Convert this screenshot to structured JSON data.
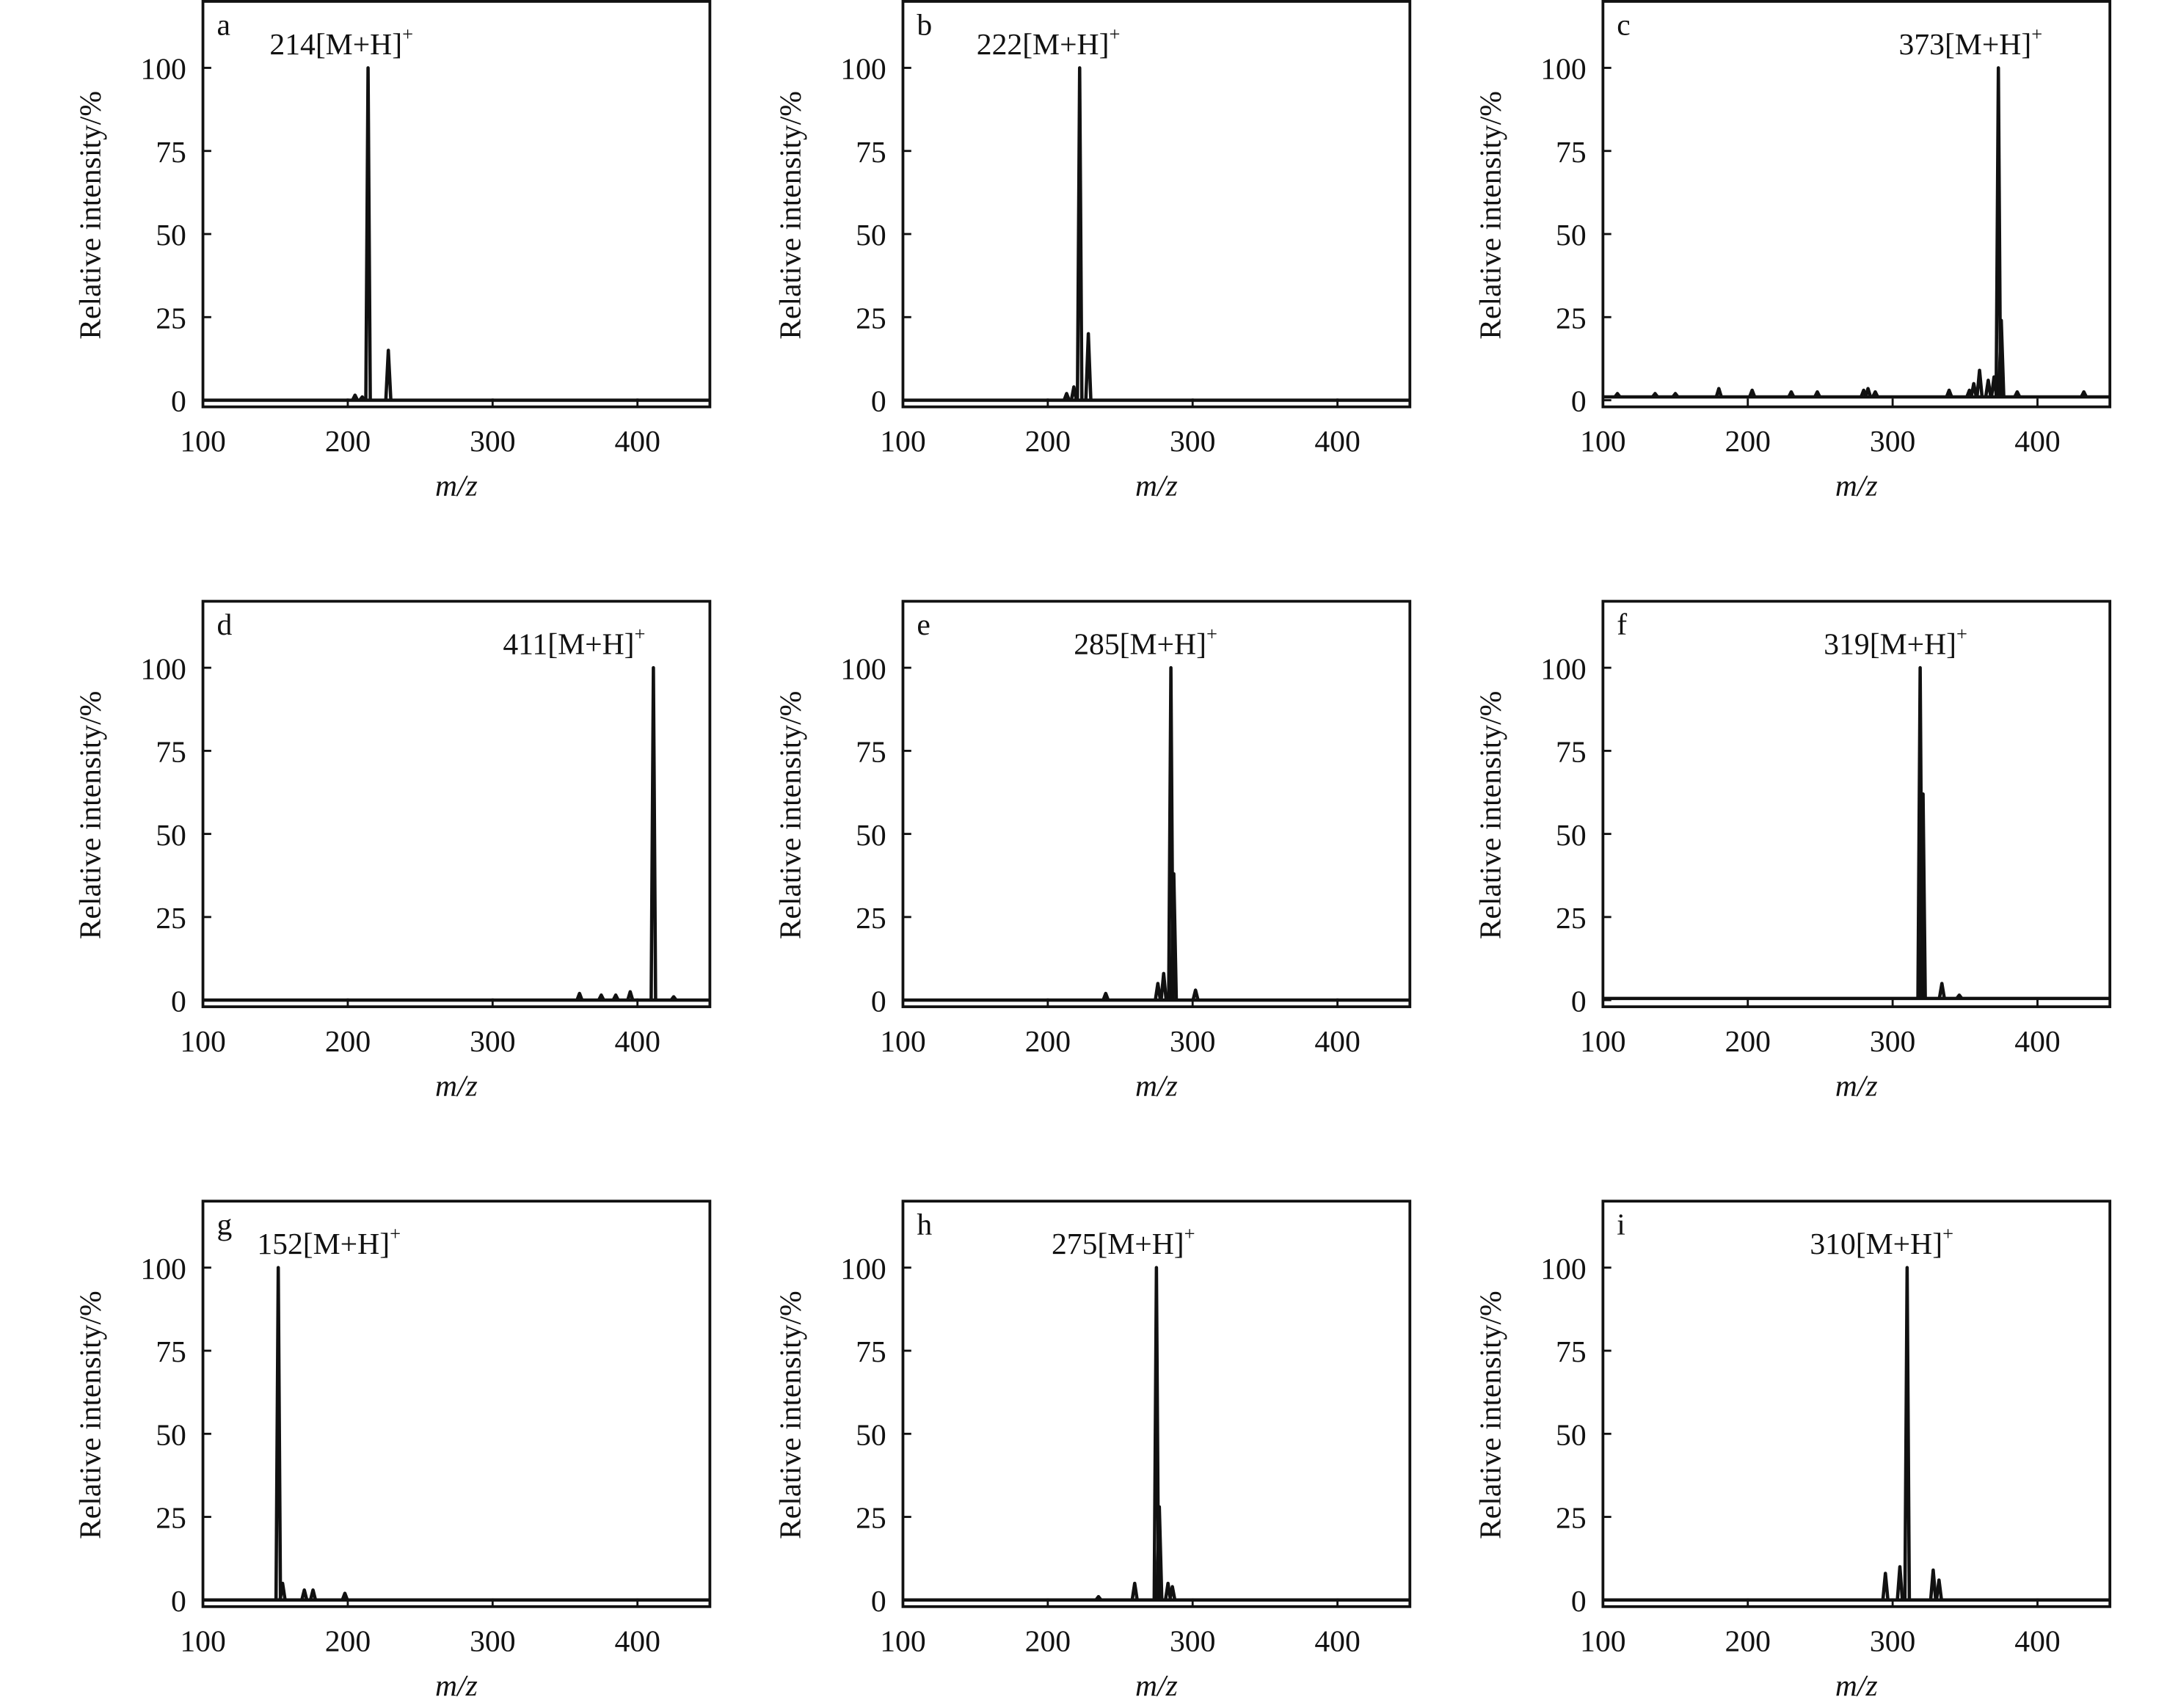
{
  "chart_data": [
    {
      "type": "line",
      "panel": "a",
      "annotation": "214[M+H]",
      "annotation_sup": "+",
      "xlabel": "m/z",
      "ylabel": "Relative intensity/%",
      "xlim": [
        100,
        450
      ],
      "ylim": [
        -2,
        120
      ],
      "xticks": [
        100,
        200,
        300,
        400
      ],
      "yticks": [
        0,
        25,
        50,
        75,
        100
      ],
      "baseline": 0,
      "peaks": [
        [
          205,
          1.5
        ],
        [
          210,
          1
        ],
        [
          214,
          100
        ],
        [
          228,
          15
        ]
      ]
    },
    {
      "type": "line",
      "panel": "b",
      "annotation": "222[M+H]",
      "annotation_sup": "+",
      "xlabel": "m/z",
      "ylabel": "Relative intensity/%",
      "xlim": [
        100,
        450
      ],
      "ylim": [
        -2,
        120
      ],
      "xticks": [
        100,
        200,
        300,
        400
      ],
      "yticks": [
        0,
        25,
        50,
        75,
        100
      ],
      "baseline": 0,
      "peaks": [
        [
          213,
          2
        ],
        [
          218,
          4
        ],
        [
          222,
          100
        ],
        [
          228,
          20
        ]
      ]
    },
    {
      "type": "line",
      "panel": "c",
      "annotation": "373[M+H]",
      "annotation_sup": "+",
      "xlabel": "m/z",
      "ylabel": "Relative intensity/%",
      "xlim": [
        100,
        450
      ],
      "ylim": [
        -2,
        120
      ],
      "xticks": [
        100,
        200,
        300,
        400
      ],
      "yticks": [
        0,
        25,
        50,
        75,
        100
      ],
      "baseline": 1,
      "peaks": [
        [
          110,
          2
        ],
        [
          136,
          2
        ],
        [
          150,
          2
        ],
        [
          180,
          3.5
        ],
        [
          203,
          3
        ],
        [
          230,
          2.5
        ],
        [
          248,
          2.5
        ],
        [
          280,
          3
        ],
        [
          283,
          3.5
        ],
        [
          288,
          2.5
        ],
        [
          339,
          3
        ],
        [
          353,
          3
        ],
        [
          356,
          5
        ],
        [
          360,
          9
        ],
        [
          366,
          6
        ],
        [
          370,
          7
        ],
        [
          373,
          100
        ],
        [
          375,
          24
        ],
        [
          386,
          2.5
        ],
        [
          432,
          2.5
        ]
      ]
    },
    {
      "type": "line",
      "panel": "d",
      "annotation": "411[M+H]",
      "annotation_sup": "+",
      "xlabel": "m/z",
      "ylabel": "Relative intensity/%",
      "xlim": [
        100,
        450
      ],
      "ylim": [
        -2,
        120
      ],
      "xticks": [
        100,
        200,
        300,
        400
      ],
      "yticks": [
        0,
        25,
        50,
        75,
        100
      ],
      "baseline": 0,
      "peaks": [
        [
          360,
          2
        ],
        [
          375,
          1.5
        ],
        [
          385,
          1.5
        ],
        [
          395,
          2.5
        ],
        [
          411,
          100
        ],
        [
          425,
          1
        ]
      ]
    },
    {
      "type": "line",
      "panel": "e",
      "annotation": "285[M+H]",
      "annotation_sup": "+",
      "xlabel": "m/z",
      "ylabel": "Relative intensity/%",
      "xlim": [
        100,
        450
      ],
      "ylim": [
        -2,
        120
      ],
      "xticks": [
        100,
        200,
        300,
        400
      ],
      "yticks": [
        0,
        25,
        50,
        75,
        100
      ],
      "baseline": 0,
      "peaks": [
        [
          240,
          2
        ],
        [
          276,
          5
        ],
        [
          280,
          8
        ],
        [
          285,
          100
        ],
        [
          287,
          38
        ],
        [
          302,
          3
        ]
      ]
    },
    {
      "type": "line",
      "panel": "f",
      "annotation": "319[M+H]",
      "annotation_sup": "+",
      "xlabel": "m/z",
      "ylabel": "Relative intensity/%",
      "xlim": [
        100,
        450
      ],
      "ylim": [
        -2,
        120
      ],
      "xticks": [
        100,
        200,
        300,
        400
      ],
      "yticks": [
        0,
        25,
        50,
        75,
        100
      ],
      "baseline": 0.5,
      "peaks": [
        [
          319,
          100
        ],
        [
          321,
          62
        ],
        [
          334,
          5
        ],
        [
          346,
          1.5
        ]
      ]
    },
    {
      "type": "line",
      "panel": "g",
      "annotation": "152[M+H]",
      "annotation_sup": "+",
      "xlabel": "m/z",
      "ylabel": "Relative intensity/%",
      "xlim": [
        100,
        450
      ],
      "ylim": [
        -2,
        120
      ],
      "xticks": [
        100,
        200,
        300,
        400
      ],
      "yticks": [
        0,
        25,
        50,
        75,
        100
      ],
      "baseline": 0,
      "peaks": [
        [
          152,
          100
        ],
        [
          155,
          5
        ],
        [
          170,
          3
        ],
        [
          176,
          3
        ],
        [
          198,
          2
        ]
      ]
    },
    {
      "type": "line",
      "panel": "h",
      "annotation": "275[M+H]",
      "annotation_sup": "+",
      "xlabel": "m/z",
      "ylabel": "Relative intensity/%",
      "xlim": [
        100,
        450
      ],
      "ylim": [
        -2,
        120
      ],
      "xticks": [
        100,
        200,
        300,
        400
      ],
      "yticks": [
        0,
        25,
        50,
        75,
        100
      ],
      "baseline": 0,
      "peaks": [
        [
          235,
          1
        ],
        [
          260,
          5
        ],
        [
          275,
          100
        ],
        [
          277,
          28
        ],
        [
          283,
          5
        ],
        [
          286,
          4
        ]
      ]
    },
    {
      "type": "line",
      "panel": "i",
      "annotation": "310[M+H]",
      "annotation_sup": "+",
      "xlabel": "m/z",
      "ylabel": "Relative intensity/%",
      "xlim": [
        100,
        450
      ],
      "ylim": [
        -2,
        120
      ],
      "xticks": [
        100,
        200,
        300,
        400
      ],
      "yticks": [
        0,
        25,
        50,
        75,
        100
      ],
      "baseline": 0,
      "peaks": [
        [
          295,
          8
        ],
        [
          305,
          10
        ],
        [
          310,
          100
        ],
        [
          328,
          9
        ],
        [
          332,
          6
        ]
      ]
    }
  ]
}
